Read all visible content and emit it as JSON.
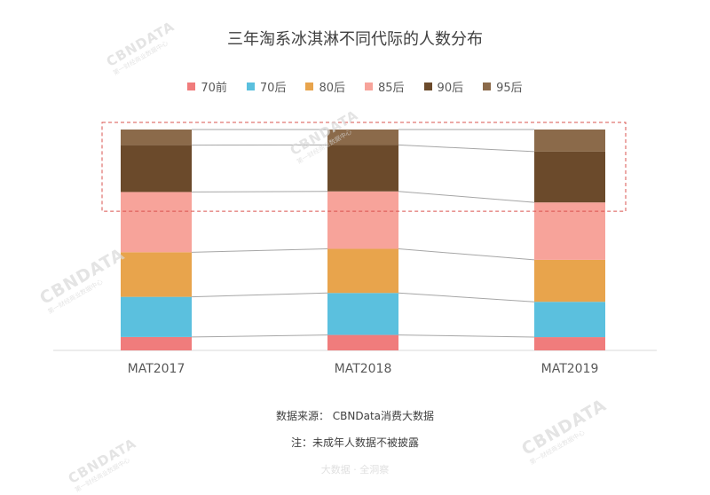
{
  "header": {
    "title": "三年淘系冰淇淋不同代际的人数分布"
  },
  "chart_data": {
    "type": "bar",
    "stacked": true,
    "normalized": true,
    "title": "三年淘系冰淇淋不同代际的人数分布",
    "categories": [
      "MAT2017",
      "MAT2018",
      "MAT2019"
    ],
    "series": [
      {
        "name": "70前",
        "color": "#f07c7c",
        "values": [
          6,
          7,
          6
        ]
      },
      {
        "name": "70后",
        "color": "#5bc0de",
        "values": [
          18,
          19,
          16
        ]
      },
      {
        "name": "80后",
        "color": "#e8a44c",
        "values": [
          20,
          20,
          19
        ]
      },
      {
        "name": "85后",
        "color": "#f7a39a",
        "values": [
          27,
          26,
          26
        ]
      },
      {
        "name": "90后",
        "color": "#6b4a2b",
        "values": [
          21,
          21,
          23
        ]
      },
      {
        "name": "95后",
        "color": "#8b6a4a",
        "values": [
          7,
          7,
          10
        ]
      }
    ],
    "ylim": [
      0,
      100
    ],
    "highlight_series": [
      "90后",
      "95后"
    ],
    "legend_position": "top",
    "grid": false
  },
  "footer": {
    "source": "数据来源： CBNData消费大数据",
    "note": "注：未成年人数据不被披露",
    "bottom_watermark": "大数据 · 全洞察"
  },
  "watermark": {
    "brand": "CBNDATA",
    "sub": "第一财经商业数据中心"
  }
}
